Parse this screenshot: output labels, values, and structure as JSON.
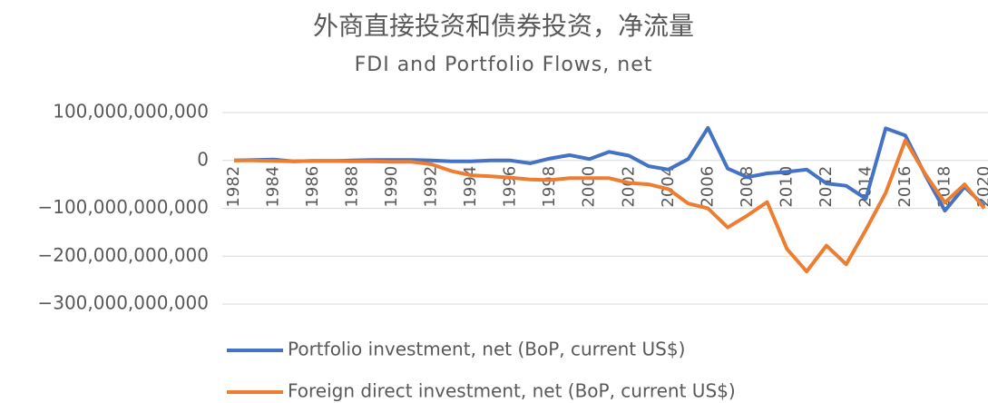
{
  "chart_data": {
    "type": "line",
    "title": "外商直接投资和债券投资，净流量",
    "subtitle": "FDI and Portfolio Flows, net",
    "categories": [
      "1982",
      null,
      "1984",
      null,
      "1986",
      null,
      "1988",
      null,
      "1990",
      null,
      "1992",
      null,
      "1994",
      null,
      "1996",
      null,
      "1998",
      null,
      "2000",
      null,
      "2002",
      null,
      "2004",
      null,
      "2006",
      null,
      "2008",
      null,
      "2010",
      null,
      "2012",
      null,
      "2014",
      null,
      "2016",
      null,
      "2018",
      null,
      "2020"
    ],
    "series": [
      {
        "name": "Portfolio investment, net (BoP, current US$)",
        "color": "#4472c4",
        "values": [
          0,
          1000000000,
          2000000000,
          -2000000000,
          -1000000000,
          -1000000000,
          0,
          1000000000,
          1000000000,
          1000000000,
          0,
          -2000000000,
          -2000000000,
          0,
          0,
          -6000000000,
          4000000000,
          11000000000,
          3000000000,
          18000000000,
          10000000000,
          -12000000000,
          -19000000000,
          3000000000,
          68000000000,
          -17000000000,
          -35000000000,
          -27000000000,
          -24000000000,
          -19000000000,
          -48000000000,
          -53000000000,
          -80000000000,
          67000000000,
          52000000000,
          -30000000000,
          -105000000000,
          -55000000000,
          -95000000000
        ]
      },
      {
        "name": "Foreign direct investment, net (BoP, current US$)",
        "color": "#ed7d31",
        "values": [
          0,
          0,
          -1000000000,
          -2000000000,
          -1000000000,
          -1000000000,
          -2000000000,
          -2000000000,
          -3000000000,
          -3000000000,
          -8000000000,
          -22000000000,
          -31000000000,
          -33000000000,
          -36000000000,
          -40000000000,
          -41000000000,
          -37000000000,
          -37000000000,
          -37000000000,
          -47000000000,
          -50000000000,
          -60000000000,
          -90000000000,
          -100000000000,
          -140000000000,
          -115000000000,
          -87000000000,
          -185000000000,
          -232000000000,
          -178000000000,
          -217000000000,
          -145000000000,
          -68000000000,
          42000000000,
          -28000000000,
          -88000000000,
          -50000000000,
          -100000000000
        ]
      }
    ],
    "ylim": [
      -300000000000,
      100000000000
    ],
    "yticks": [
      {
        "value": 100000000000,
        "label": "100,000,000,000"
      },
      0,
      {
        "value": -100000000000,
        "label": "−100,000,000,000"
      },
      {
        "value": -200000000000,
        "label": "−200,000,000,000"
      },
      {
        "value": -300000000000,
        "label": "−300,000,000,000"
      }
    ],
    "grid": true,
    "legend": "bottom"
  }
}
